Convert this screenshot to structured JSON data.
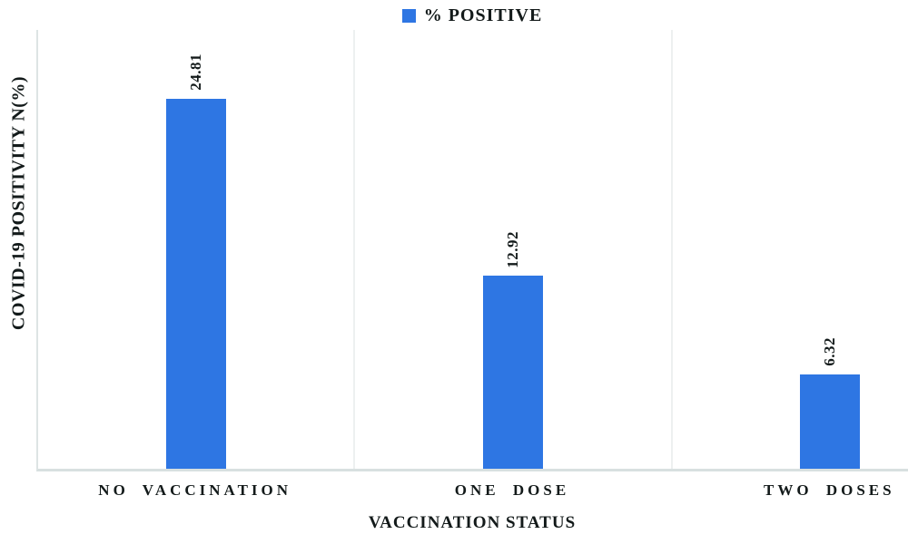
{
  "chart_data": {
    "type": "bar",
    "title": "",
    "series_name": "% POSITIVE",
    "categories": [
      "NO VACCINATION",
      "ONE DOSE",
      "TWO DOSES"
    ],
    "values": [
      24.81,
      12.92,
      6.32
    ],
    "value_labels": [
      "24.81",
      "12.92",
      "6.32"
    ],
    "xlabel": "VACCINATION STATUS",
    "ylabel": "COVID-19 POSITIVITY N(%)",
    "ylim": [
      0,
      29.4
    ],
    "y_axis_ticks_visible": false,
    "grid": "vertical panel separators only",
    "legend_position": "top-center",
    "bar_color": "#2e76e3",
    "axis_line_color": "#d8e0e0",
    "gridline_color": "#edf0f0",
    "text_color": "#131a1a",
    "value_label_orientation": "rotated-90",
    "background_color": "#ffffff"
  }
}
